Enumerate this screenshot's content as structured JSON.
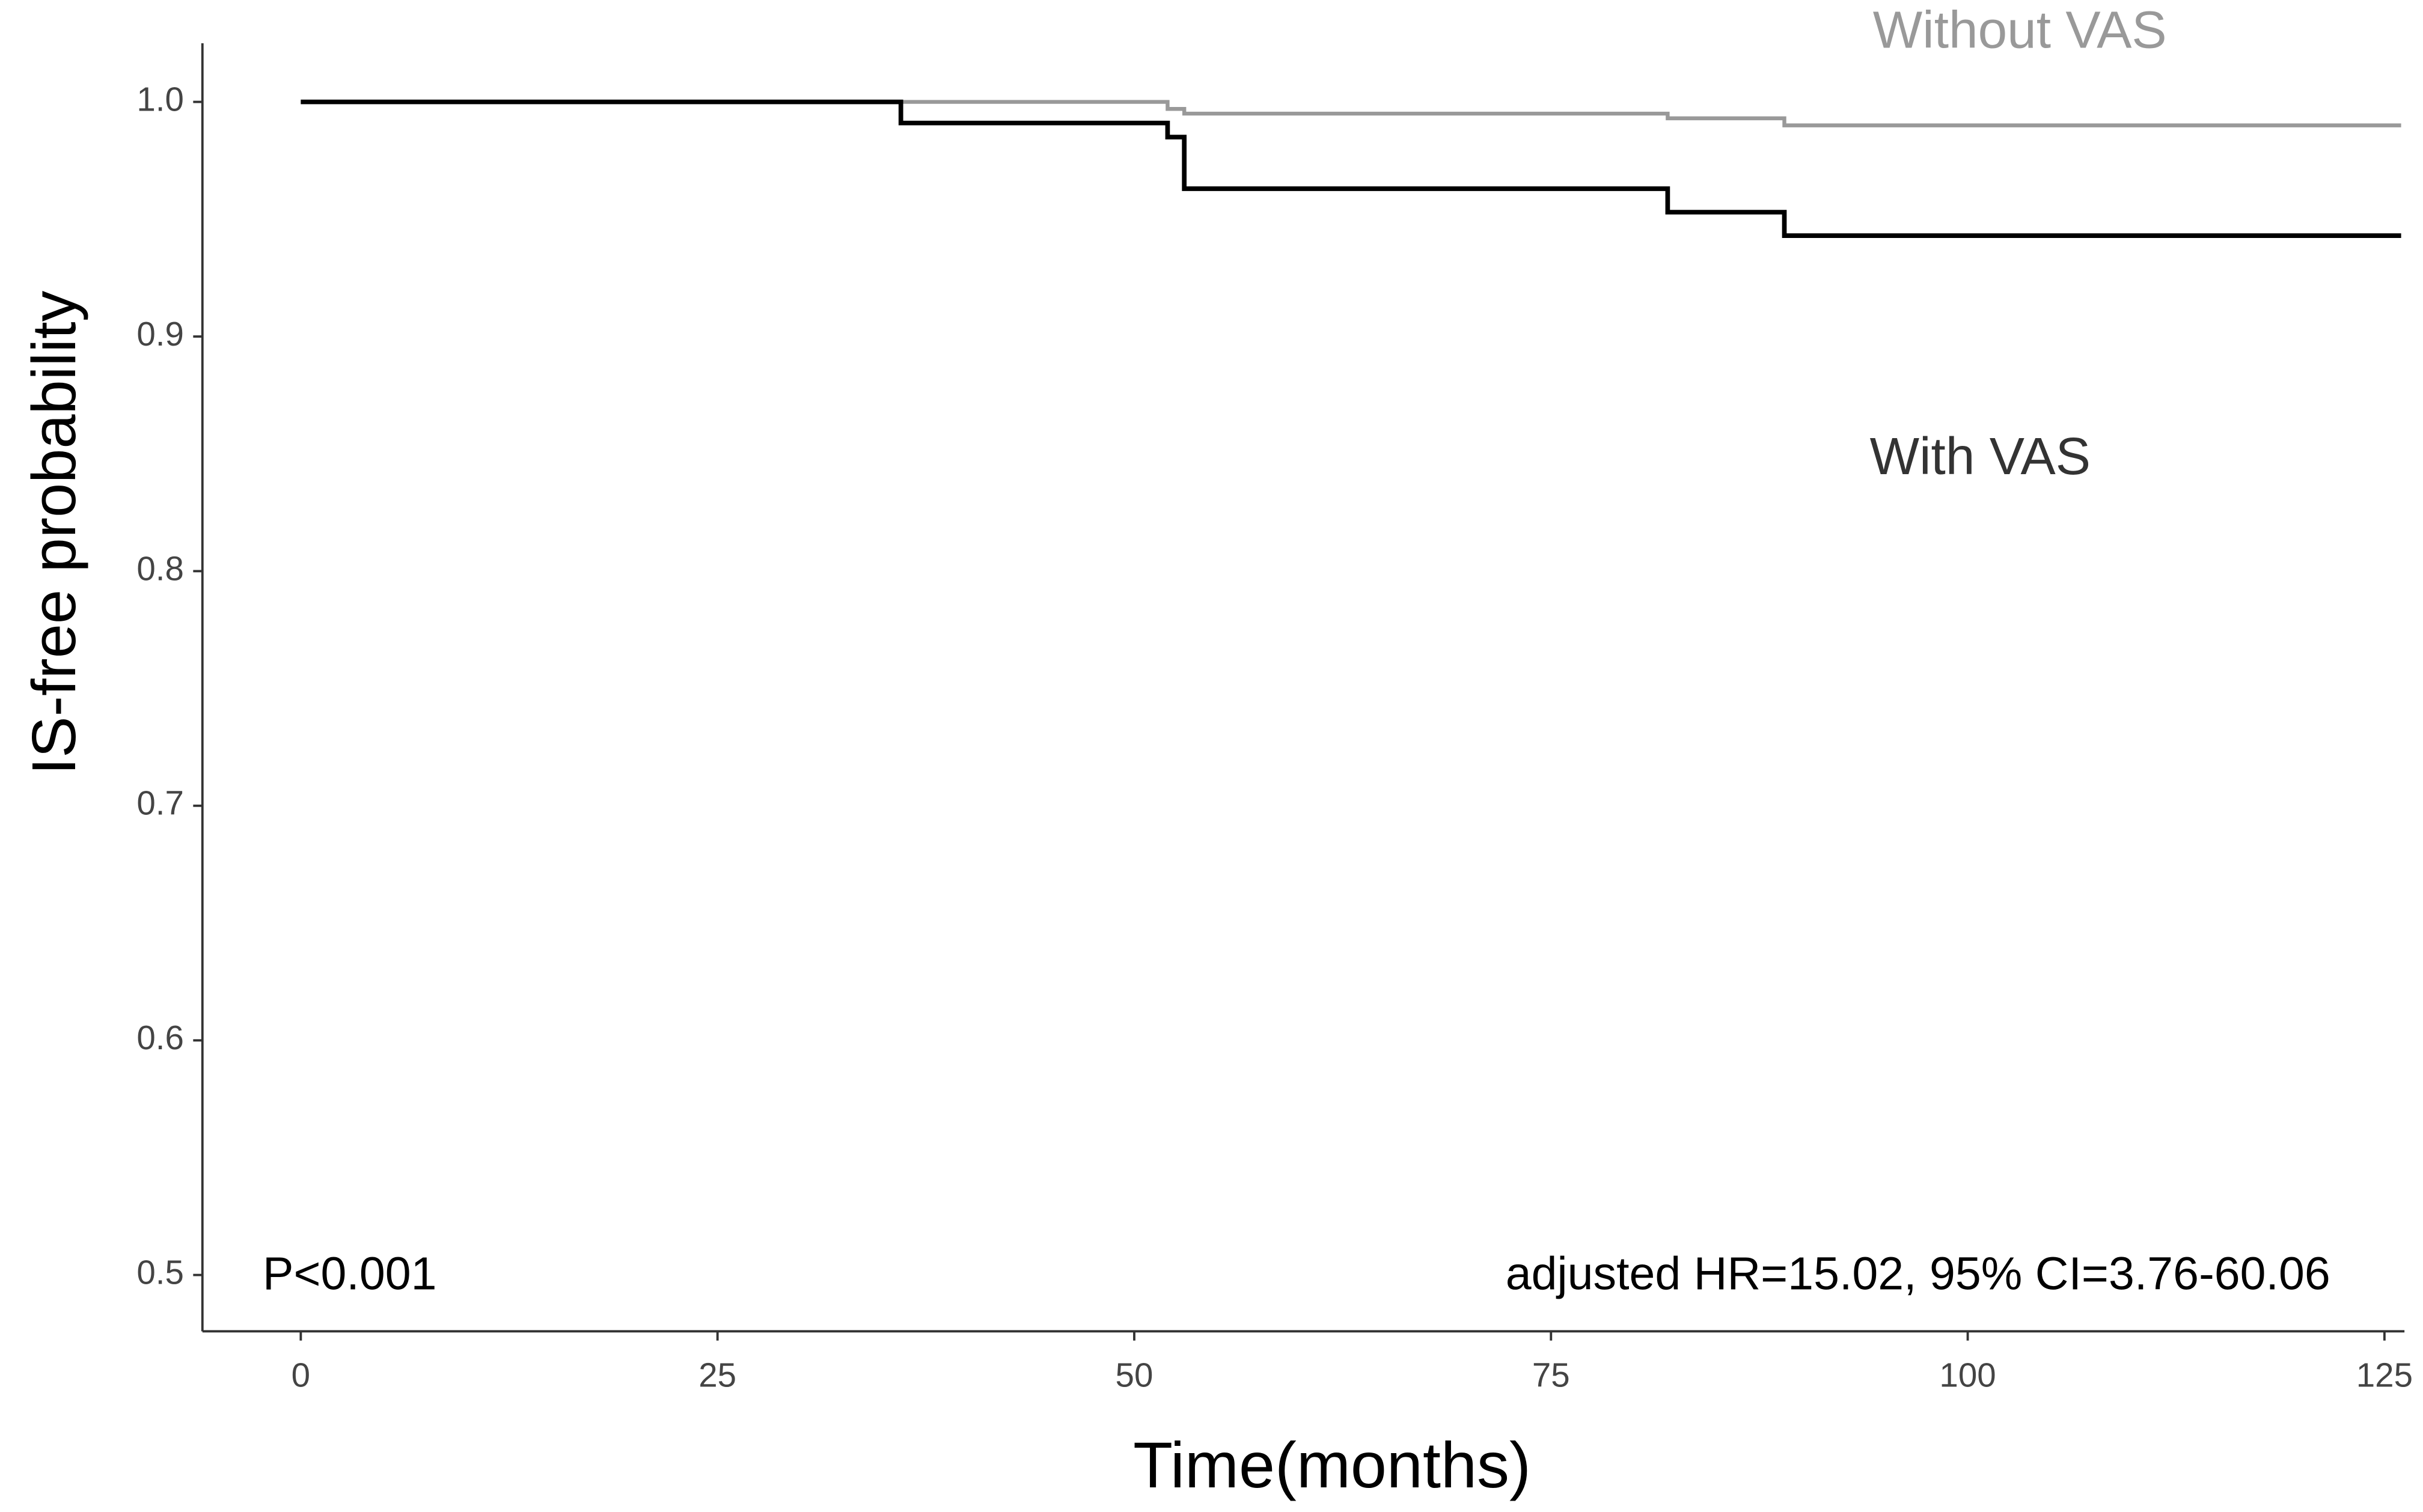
{
  "chart_data": {
    "type": "step",
    "xlabel": "Time(months)",
    "ylabel": "IS-free probability",
    "xlim": [
      -5.9,
      126.2
    ],
    "ylim": [
      0.476,
      1.025
    ],
    "xticks": [
      0,
      25,
      50,
      75,
      100,
      125
    ],
    "yticks": [
      0.5,
      0.6,
      0.7,
      0.8,
      0.9,
      {
        "value": 1,
        "label": "1.0"
      }
    ],
    "series": [
      {
        "name": "With VAS",
        "color": "#000000",
        "x": [
          0,
          36,
          36,
          52,
          52,
          53,
          53,
          82,
          82,
          89,
          89,
          126
        ],
        "values": [
          1,
          1,
          0.991,
          0.991,
          0.985,
          0.985,
          0.963,
          0.963,
          0.953,
          0.953,
          0.943,
          0.943
        ]
      },
      {
        "name": "Without VAS",
        "color": "#999999",
        "x": [
          0,
          52,
          52,
          53,
          53,
          82,
          82,
          89,
          89,
          126
        ],
        "values": [
          1,
          1,
          0.997,
          0.997,
          0.995,
          0.995,
          0.993,
          0.993,
          0.99,
          0.99
        ]
      }
    ],
    "annotations": [
      "P<0.001",
      "adjusted HR=15.02, 95% CI=3.76-60.06"
    ]
  }
}
